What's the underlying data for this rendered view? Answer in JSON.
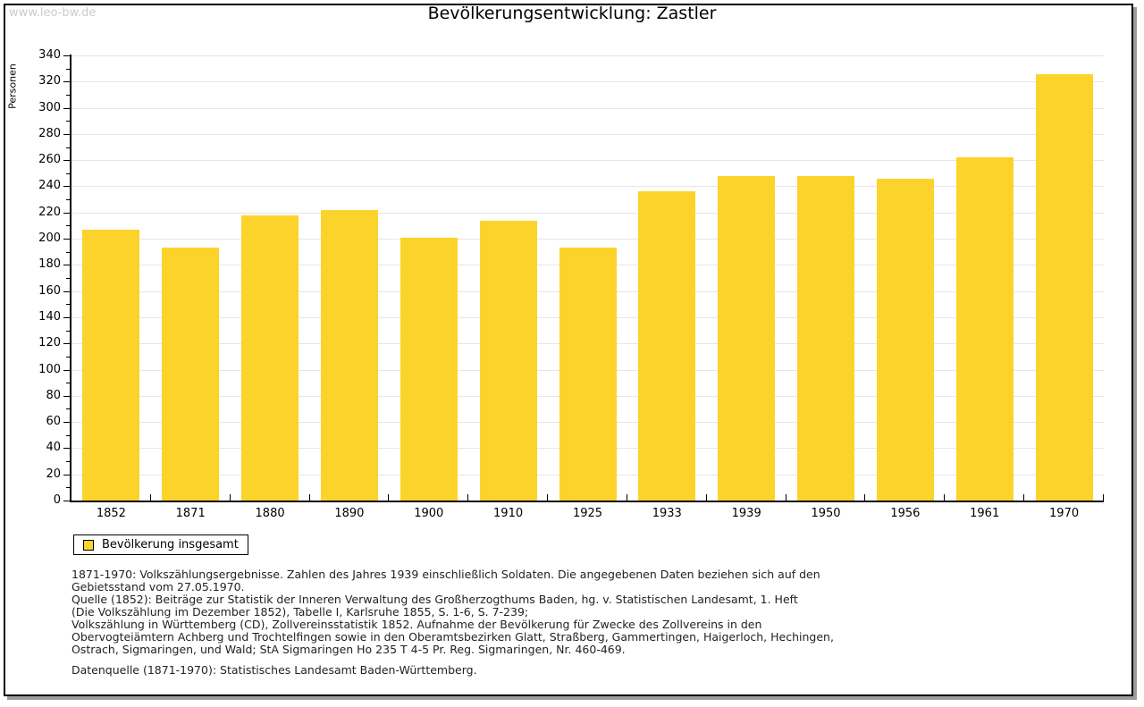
{
  "watermark": "www.leo-bw.de",
  "title": "Bevölkerungsentwicklung: Zastler",
  "legend": {
    "label": "Bevölkerung insgesamt"
  },
  "colors": {
    "bar": "#fcd32b",
    "grid": "#e6e6e6",
    "axis": "#000000",
    "watermark": "#cccccc",
    "text": "#222222"
  },
  "chart_data": {
    "type": "bar",
    "title": "Bevölkerungsentwicklung: Zastler",
    "xlabel": "",
    "ylabel": "Personen",
    "categories": [
      "1852",
      "1871",
      "1880",
      "1890",
      "1900",
      "1910",
      "1925",
      "1933",
      "1939",
      "1950",
      "1956",
      "1961",
      "1970"
    ],
    "series": [
      {
        "name": "Bevölkerung insgesamt",
        "values": [
          207,
          193,
          218,
          222,
          201,
          214,
          193,
          236,
          248,
          248,
          246,
          262,
          326
        ]
      }
    ],
    "ylim": [
      0,
      340
    ],
    "ytick_step": 20,
    "ytick_minor_step": 10,
    "grid": true,
    "legend_position": "bottom-left"
  },
  "footer": {
    "lines": [
      "1871-1970: Volkszählungsergebnisse. Zahlen des Jahres 1939 einschließlich Soldaten. Die angegebenen Daten beziehen sich auf den",
      "Gebietsstand vom 27.05.1970.",
      "Quelle (1852): Beiträge zur Statistik der Inneren Verwaltung des Großherzogthums Baden, hg. v. Statistischen Landesamt, 1. Heft",
      "(Die Volkszählung im Dezember 1852), Tabelle I, Karlsruhe 1855, S. 1-6, S. 7-239;",
      "Volkszählung in Württemberg (CD), Zollvereinsstatistik 1852. Aufnahme der Bevölkerung für Zwecke des Zollvereins in den",
      "Obervogteiämtern Achberg und Trochtelfingen sowie in den Oberamtsbezirken Glatt, Straßberg, Gammertingen, Haigerloch, Hechingen,",
      "Ostrach, Sigmaringen, und Wald; StA Sigmaringen Ho 235 T 4-5 Pr. Reg. Sigmaringen, Nr. 460-469."
    ],
    "datasource": "Datenquelle (1871-1970): Statistisches Landesamt Baden-Württemberg."
  }
}
